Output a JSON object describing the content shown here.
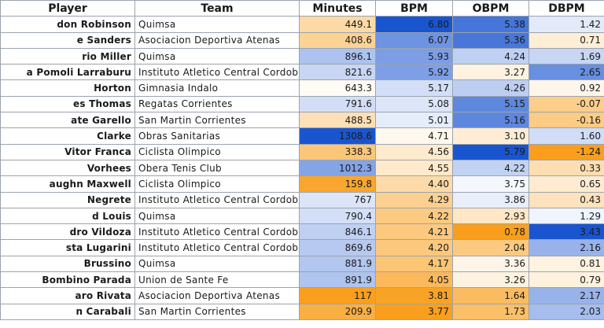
{
  "columns": [
    "Player",
    "Team",
    "Minutes",
    "BPM",
    "OBPM",
    "DBPM"
  ],
  "rows": [
    {
      "player": "don Robinson",
      "team": "Quimsa",
      "minutes": "449.1",
      "bpm": "6.80",
      "obpm": "5.38",
      "dbpm": "1.42"
    },
    {
      "player": "e Sanders",
      "team": "Asociacion Deportiva Atenas",
      "minutes": "408.6",
      "bpm": "6.07",
      "obpm": "5.36",
      "dbpm": "0.71"
    },
    {
      "player": "rio Miller",
      "team": "Quimsa",
      "minutes": "896.1",
      "bpm": "5.93",
      "obpm": "4.24",
      "dbpm": "1.69"
    },
    {
      "player": "a Pomoli Larraburu",
      "team": "Instituto Atletico Central Cordoba",
      "minutes": "821.6",
      "bpm": "5.92",
      "obpm": "3.27",
      "dbpm": "2.65"
    },
    {
      "player": "Horton",
      "team": "Gimnasia Indalo",
      "minutes": "643.3",
      "bpm": "5.17",
      "obpm": "4.26",
      "dbpm": "0.92"
    },
    {
      "player": "es Thomas",
      "team": "Regatas Corrientes",
      "minutes": "791.6",
      "bpm": "5.08",
      "obpm": "5.15",
      "dbpm": "-0.07"
    },
    {
      "player": "ate Garello",
      "team": "San Martin Corrientes",
      "minutes": "488.5",
      "bpm": "5.01",
      "obpm": "5.16",
      "dbpm": "-0.16"
    },
    {
      "player": "Clarke",
      "team": "Obras Sanitarias",
      "minutes": "1308.6",
      "bpm": "4.71",
      "obpm": "3.10",
      "dbpm": "1.60"
    },
    {
      "player": "Vitor Franca",
      "team": "Ciclista Olimpico",
      "minutes": "338.3",
      "bpm": "4.56",
      "obpm": "5.79",
      "dbpm": "-1.24"
    },
    {
      "player": "Vorhees",
      "team": "Obera Tenis Club",
      "minutes": "1012.3",
      "bpm": "4.55",
      "obpm": "4.22",
      "dbpm": "0.33"
    },
    {
      "player": "aughn Maxwell",
      "team": "Ciclista Olimpico",
      "minutes": "159.8",
      "bpm": "4.40",
      "obpm": "3.75",
      "dbpm": "0.65"
    },
    {
      "player": "Negrete",
      "team": "Instituto Atletico Central Cordoba",
      "minutes": "767",
      "bpm": "4.29",
      "obpm": "3.86",
      "dbpm": "0.43"
    },
    {
      "player": "d Louis",
      "team": "Quimsa",
      "minutes": "790.4",
      "bpm": "4.22",
      "obpm": "2.93",
      "dbpm": "1.29"
    },
    {
      "player": "dro Vildoza",
      "team": "Instituto Atletico Central Cordoba",
      "minutes": "846.1",
      "bpm": "4.21",
      "obpm": "0.78",
      "dbpm": "3.43"
    },
    {
      "player": "sta Lugarini",
      "team": "Instituto Atletico Central Cordoba",
      "minutes": "869.6",
      "bpm": "4.20",
      "obpm": "2.04",
      "dbpm": "2.16"
    },
    {
      "player": "Brussino",
      "team": "Quimsa",
      "minutes": "881.9",
      "bpm": "4.17",
      "obpm": "3.36",
      "dbpm": "0.81"
    },
    {
      "player": "Bombino Parada",
      "team": "Union de Sante Fe",
      "minutes": "891.9",
      "bpm": "4.05",
      "obpm": "3.26",
      "dbpm": "0.79"
    },
    {
      "player": "aro Rivata",
      "team": "Asociacion Deportiva Atenas",
      "minutes": "117",
      "bpm": "3.81",
      "obpm": "1.64",
      "dbpm": "2.17"
    },
    {
      "player": "n Carabali",
      "team": "San Martin Corrientes",
      "minutes": "209.9",
      "bpm": "3.77",
      "obpm": "1.73",
      "dbpm": "2.03"
    }
  ],
  "colors": {
    "scale_low": "#f99f1d",
    "scale_mid": "#ffffff",
    "scale_high": "#1a55d0",
    "grid": "#9aa3ad",
    "text": "#1a1a1a"
  }
}
